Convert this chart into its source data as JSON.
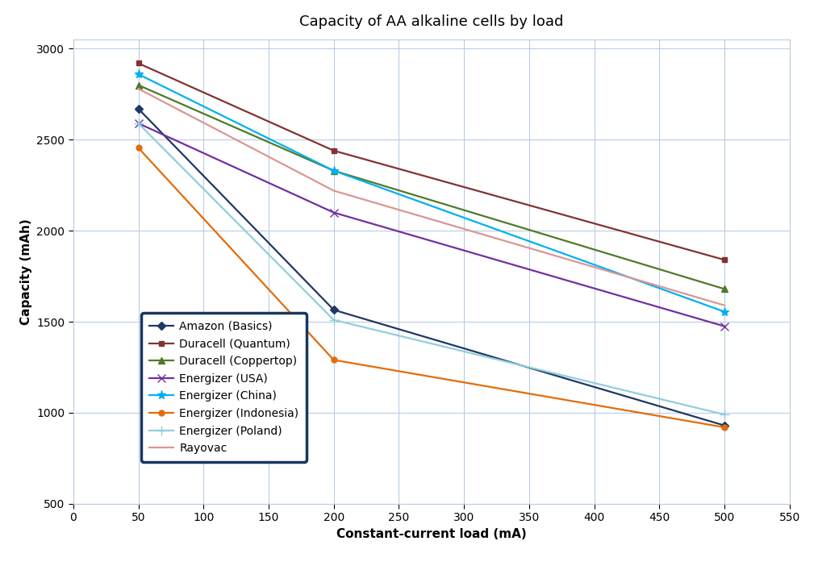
{
  "title": "Capacity of AA alkaline cells by load",
  "xlabel": "Constant-current load (mA)",
  "ylabel": "Capacity (mAh)",
  "xlim": [
    0,
    550
  ],
  "ylim": [
    500,
    3050
  ],
  "xticks": [
    0,
    50,
    100,
    150,
    200,
    250,
    300,
    350,
    400,
    450,
    500,
    550
  ],
  "yticks": [
    500,
    1000,
    1500,
    2000,
    2500,
    3000
  ],
  "series": [
    {
      "label": "Amazon (Basics)",
      "color": "#1F3864",
      "marker": "D",
      "markersize": 5,
      "x": [
        50,
        200,
        500
      ],
      "y": [
        2670,
        1565,
        930
      ]
    },
    {
      "label": "Duracell (Quantum)",
      "color": "#833232",
      "marker": "s",
      "markersize": 5,
      "x": [
        50,
        200,
        500
      ],
      "y": [
        2920,
        2440,
        1840
      ]
    },
    {
      "label": "Duracell (Coppertop)",
      "color": "#4F7A28",
      "marker": "^",
      "markersize": 6,
      "x": [
        50,
        200,
        500
      ],
      "y": [
        2800,
        2330,
        1680
      ]
    },
    {
      "label": "Energizer (USA)",
      "color": "#7030A0",
      "marker": "x",
      "markersize": 7,
      "x": [
        50,
        200,
        500
      ],
      "y": [
        2590,
        2100,
        1475
      ]
    },
    {
      "label": "Energizer (China)",
      "color": "#00B0F0",
      "marker": "*",
      "markersize": 8,
      "x": [
        50,
        200,
        500
      ],
      "y": [
        2860,
        2330,
        1555
      ]
    },
    {
      "label": "Energizer (Indonesia)",
      "color": "#E36C09",
      "marker": "o",
      "markersize": 5,
      "x": [
        50,
        200,
        500
      ],
      "y": [
        2455,
        1290,
        920
      ]
    },
    {
      "label": "Energizer (Poland)",
      "color": "#92CDDC",
      "marker": "+",
      "markersize": 8,
      "x": [
        50,
        200,
        500
      ],
      "y": [
        2590,
        1510,
        990
      ]
    },
    {
      "label": "Rayovac",
      "color": "#DA9694",
      "marker": "none",
      "markersize": 5,
      "x": [
        50,
        200,
        500
      ],
      "y": [
        2780,
        2220,
        1590
      ]
    }
  ],
  "background_color": "#FFFFFF",
  "plot_bg_color": "#FFFFFF",
  "grid_color": "#B8CCE4",
  "spine_color": "#B8CCE4",
  "title_fontsize": 13,
  "axis_label_fontsize": 11,
  "tick_fontsize": 10,
  "legend_fontsize": 10,
  "legend_edge_color": "#17375E",
  "legend_edge_width": 2.5
}
